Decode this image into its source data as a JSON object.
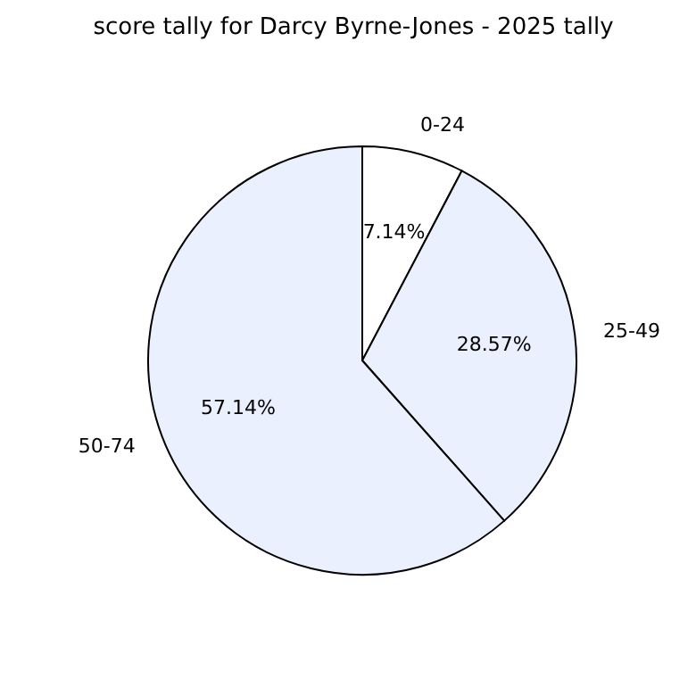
{
  "chart_data": {
    "type": "pie",
    "title": "score tally for Darcy Byrne-Jones - 2025 tally",
    "categories": [
      "0-24",
      "25-49",
      "50-74"
    ],
    "values": [
      7.14,
      28.57,
      57.14
    ],
    "colors": [
      "#ffffff",
      "#eaf0fe",
      "#eaf0fe"
    ],
    "value_labels": [
      "7.14%",
      "28.57%",
      "57.14%"
    ],
    "legend": false
  }
}
